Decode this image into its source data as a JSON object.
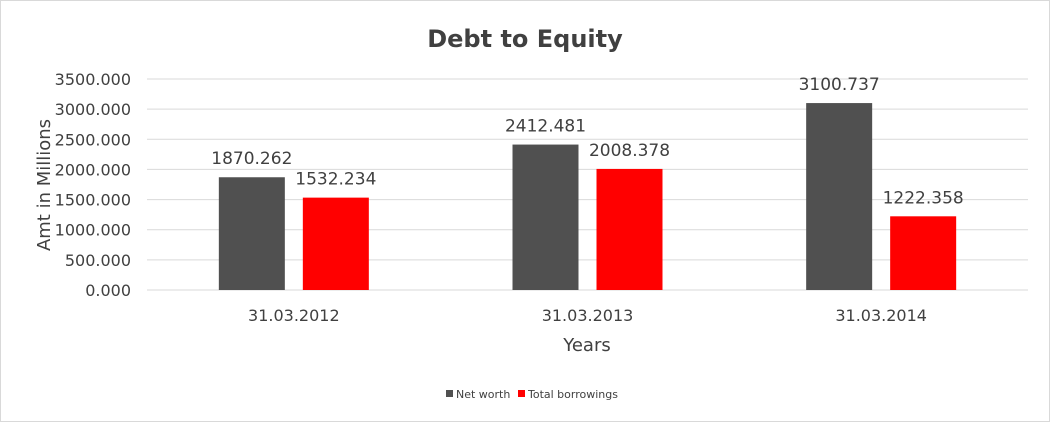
{
  "chart_data": {
    "type": "bar",
    "title": "Debt to Equity",
    "xlabel": "Years",
    "ylabel": "Amt in Millions",
    "categories": [
      "31.03.2012",
      "31.03.2013",
      "31.03.2014"
    ],
    "series": [
      {
        "name": "Net worth",
        "color": "#505050",
        "values": [
          1870.262,
          2412.481,
          3100.737
        ]
      },
      {
        "name": "Total borrowings",
        "color": "#ff0000",
        "values": [
          1532.234,
          2008.378,
          1222.358
        ]
      }
    ],
    "value_labels": [
      [
        "1870.262",
        "2412.481",
        "3100.737"
      ],
      [
        "1532.234",
        "2008.378",
        "1222.358"
      ]
    ],
    "ylim": [
      0,
      3500
    ],
    "yticks": [
      0,
      500,
      1000,
      1500,
      2000,
      2500,
      3000,
      3500
    ],
    "ytick_labels": [
      "0.000",
      "500.000",
      "1000.000",
      "1500.000",
      "2000.000",
      "2500.000",
      "3000.000",
      "3500.000"
    ],
    "grid": true,
    "legend_position": "bottom"
  }
}
